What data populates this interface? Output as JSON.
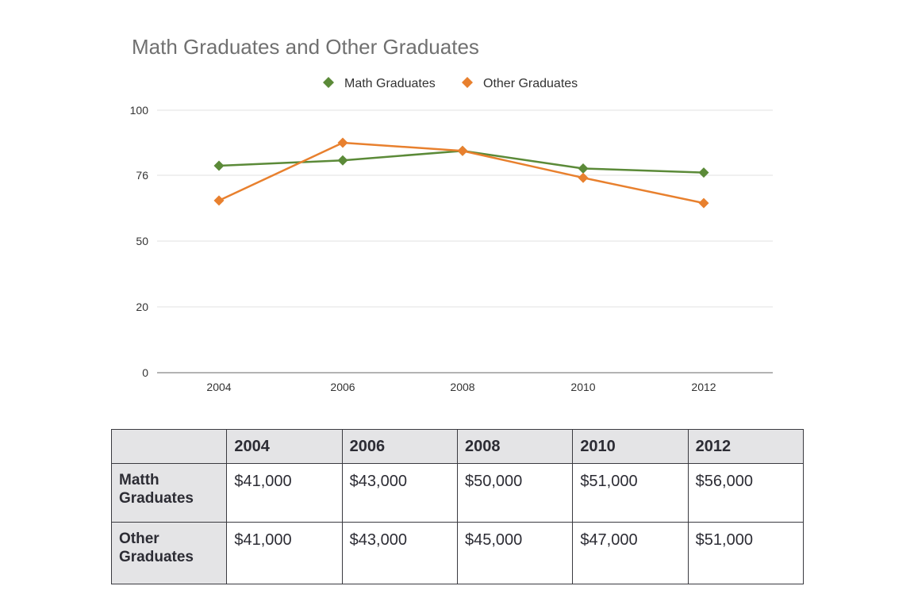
{
  "chart_data": {
    "type": "line",
    "title": "Math Graduates and Other Graduates",
    "categories": [
      "2004",
      "2006",
      "2008",
      "2010",
      "2012"
    ],
    "series": [
      {
        "name": "Math Graduates",
        "values": [
          79.5,
          81.5,
          85,
          78.5,
          77
        ],
        "color": "#5b8a38",
        "marker": "diamond"
      },
      {
        "name": "Other Graduates",
        "values": [
          66,
          88,
          85,
          75,
          65
        ],
        "color": "#e8802e",
        "marker": "diamond"
      }
    ],
    "yticks": [
      "100",
      "76",
      "50",
      "20",
      "0"
    ],
    "ylim": [
      0,
      100
    ],
    "xlabel": "",
    "ylabel": "",
    "legend_position": "top-center",
    "grid": true
  },
  "table": {
    "header": [
      "",
      "2004",
      "2006",
      "2008",
      "2010",
      "2012"
    ],
    "rows": [
      {
        "label_line1": "Matth",
        "label_line2": "Graduates",
        "cells": [
          "$41,000",
          "$43,000",
          "$50,000",
          "$51,000",
          "$56,000"
        ]
      },
      {
        "label_line1": "Other",
        "label_line2": "Graduates",
        "cells": [
          "$41,000",
          "$43,000",
          "$45,000",
          "$47,000",
          "$51,000"
        ]
      }
    ]
  }
}
